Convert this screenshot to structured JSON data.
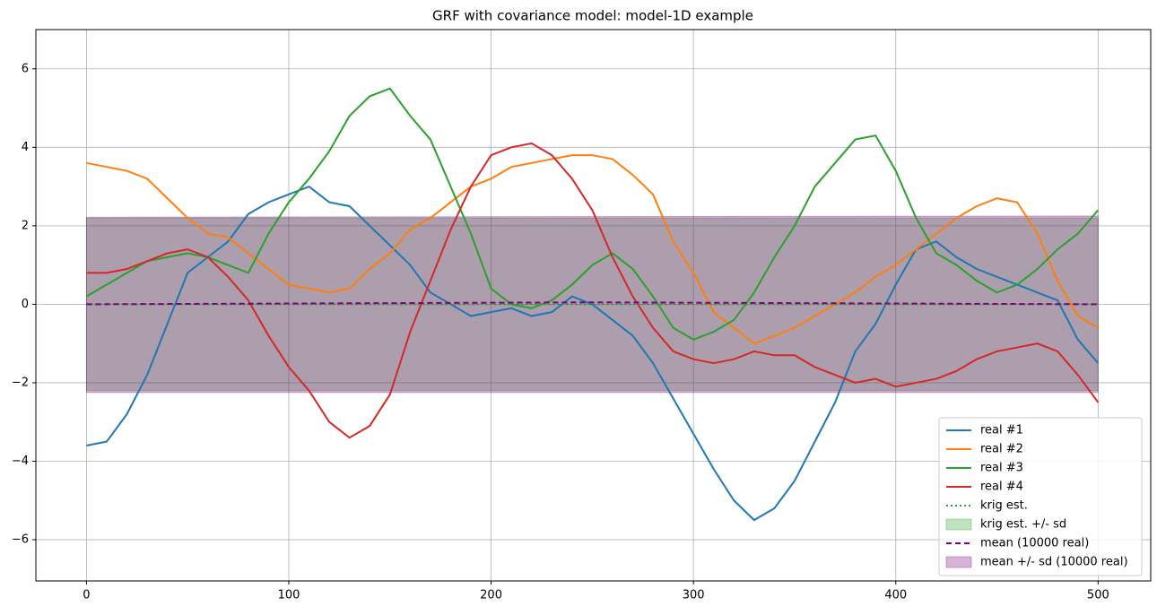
{
  "chart_data": {
    "type": "line",
    "title": "GRF with covariance model: model-1D example",
    "x": [
      0,
      10,
      20,
      30,
      40,
      50,
      60,
      70,
      80,
      90,
      100,
      110,
      120,
      130,
      140,
      150,
      160,
      170,
      180,
      190,
      200,
      210,
      220,
      230,
      240,
      250,
      260,
      270,
      280,
      290,
      300,
      310,
      320,
      330,
      340,
      350,
      360,
      370,
      380,
      390,
      400,
      410,
      420,
      430,
      440,
      450,
      460,
      470,
      480,
      490,
      500
    ],
    "xlim": [
      -25,
      526
    ],
    "ylim": [
      -7.05,
      7.0
    ],
    "xticks": [
      0,
      100,
      200,
      300,
      400,
      500
    ],
    "yticks": [
      {
        "value": -6,
        "label": "−6"
      },
      {
        "value": -4,
        "label": "−4"
      },
      {
        "value": -2,
        "label": "−2"
      },
      0,
      2,
      4,
      6
    ],
    "grid": true,
    "legend": "lower right",
    "series": [
      {
        "name": "real #1",
        "color": "#1f77b4",
        "style": "solid",
        "values": [
          -3.6,
          -3.5,
          -2.8,
          -1.8,
          -0.5,
          0.8,
          1.2,
          1.6,
          2.3,
          2.6,
          2.8,
          3.0,
          2.6,
          2.5,
          2.0,
          1.5,
          1.0,
          0.3,
          0.0,
          -0.3,
          -0.2,
          -0.1,
          -0.3,
          -0.2,
          0.2,
          0.0,
          -0.4,
          -0.8,
          -1.5,
          -2.4,
          -3.3,
          -4.2,
          -5.0,
          -5.5,
          -5.2,
          -4.5,
          -3.5,
          -2.5,
          -1.2,
          -0.5,
          0.5,
          1.4,
          1.6,
          1.2,
          0.9,
          0.7,
          0.5,
          0.3,
          0.1,
          -0.9,
          -1.5
        ]
      },
      {
        "name": "real #2",
        "color": "#ff7f0e",
        "style": "solid",
        "values": [
          3.6,
          3.5,
          3.4,
          3.2,
          2.7,
          2.2,
          1.8,
          1.7,
          1.3,
          0.9,
          0.5,
          0.4,
          0.3,
          0.4,
          0.9,
          1.3,
          1.9,
          2.2,
          2.6,
          3.0,
          3.2,
          3.5,
          3.6,
          3.7,
          3.8,
          3.8,
          3.7,
          3.3,
          2.8,
          1.6,
          0.8,
          -0.2,
          -0.6,
          -1.0,
          -0.8,
          -0.6,
          -0.3,
          0.0,
          0.3,
          0.7,
          1.0,
          1.4,
          1.8,
          2.2,
          2.5,
          2.7,
          2.6,
          1.8,
          0.6,
          -0.3,
          -0.6
        ]
      },
      {
        "name": "real #3",
        "color": "#2ca02c",
        "style": "solid",
        "values": [
          0.2,
          0.5,
          0.8,
          1.1,
          1.2,
          1.3,
          1.2,
          1.0,
          0.8,
          1.8,
          2.6,
          3.2,
          3.9,
          4.8,
          5.3,
          5.5,
          4.8,
          4.2,
          3.0,
          1.8,
          0.4,
          0.0,
          -0.1,
          0.1,
          0.5,
          1.0,
          1.3,
          0.9,
          0.2,
          -0.6,
          -0.9,
          -0.7,
          -0.4,
          0.3,
          1.2,
          2.0,
          3.0,
          3.6,
          4.2,
          4.3,
          3.4,
          2.2,
          1.3,
          1.0,
          0.6,
          0.3,
          0.5,
          0.9,
          1.4,
          1.8,
          2.4
        ]
      },
      {
        "name": "real #4",
        "color": "#d62728",
        "style": "solid",
        "values": [
          0.8,
          0.8,
          0.9,
          1.1,
          1.3,
          1.4,
          1.2,
          0.7,
          0.1,
          -0.8,
          -1.6,
          -2.2,
          -3.0,
          -3.4,
          -3.1,
          -2.3,
          -0.7,
          0.6,
          1.9,
          3.0,
          3.8,
          4.0,
          4.1,
          3.8,
          3.2,
          2.4,
          1.2,
          0.2,
          -0.6,
          -1.2,
          -1.4,
          -1.5,
          -1.4,
          -1.2,
          -1.3,
          -1.3,
          -1.6,
          -1.8,
          -2.0,
          -1.9,
          -2.1,
          -2.0,
          -1.9,
          -1.7,
          -1.4,
          -1.2,
          -1.1,
          -1.0,
          -1.2,
          -1.8,
          -2.5
        ]
      },
      {
        "name": "krig est.",
        "color": "#2ca02c",
        "style": "dotted",
        "x": [
          0,
          500
        ],
        "values": [
          0,
          0
        ]
      },
      {
        "name": "krig est. +/- sd",
        "color": "#2ca02c",
        "style": "band",
        "x": [
          0,
          500
        ],
        "lower": [
          -2.2,
          -2.2
        ],
        "upper": [
          2.2,
          2.2
        ]
      },
      {
        "name": "mean (10000 real)",
        "color": "#800080",
        "style": "dashed",
        "x": [
          0,
          250,
          500
        ],
        "values": [
          0,
          0.05,
          0
        ]
      },
      {
        "name": "mean +/- sd (10000 real)",
        "color": "#800080",
        "style": "band",
        "x": [
          0,
          500
        ],
        "lower": [
          -2.25,
          -2.25
        ],
        "upper": [
          2.22,
          2.25
        ]
      }
    ]
  }
}
